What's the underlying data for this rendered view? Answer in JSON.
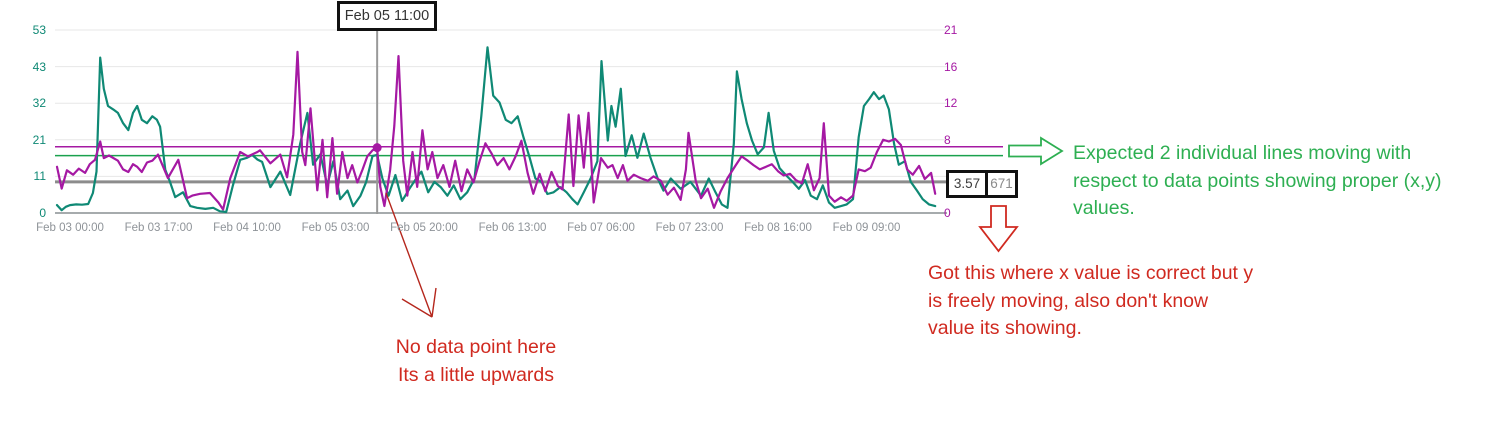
{
  "colors": {
    "teal_series": "#0f8975",
    "magenta_series": "#a519a3",
    "green_annotation": "#2eaf52",
    "red_annotation": "#d02a20",
    "red_thin_arrow": "#b5271d",
    "gray_ref_line": "#8c8c8c",
    "green_ref_line": "#1aa14e",
    "magenta_ref_line": "#a519a3",
    "gridline": "#e7e7e7",
    "baseline": "#a6abad",
    "crosshair": "#999999",
    "x_label_color": "#8e9398"
  },
  "annotations": {
    "tooltip_label": "Feb 05 11:00",
    "value_box_primary": "3.57",
    "value_box_secondary": "671",
    "green_note_lines": [
      "Expected 2 individual lines moving with",
      "respect to  data points showing proper (x,y)",
      "values."
    ],
    "red_note_right_lines": [
      "Got this where x value is correct but y",
      "is freely moving, also don't know",
      "value its showing."
    ],
    "red_note_bottom_lines": [
      "No data point here",
      "Its a little upwards"
    ]
  },
  "chart_data": {
    "type": "line",
    "grid": "horizontal-only",
    "x_axis": {
      "tick_interval_hours": 17,
      "tick_labels": [
        "Feb 03 00:00",
        "Feb 03 17:00",
        "Feb 04 10:00",
        "Feb 05 03:00",
        "Feb 05 20:00",
        "Feb 06 13:00",
        "Feb 07 06:00",
        "Feb 07 23:00",
        "Feb 08 16:00",
        "Feb 09 09:00"
      ]
    },
    "y_left": {
      "max": 53,
      "tick_labels": [
        "53",
        "43",
        "32",
        "21",
        "11",
        "0"
      ],
      "color": "#0f8975"
    },
    "y_right": {
      "max": 21,
      "tick_labels": [
        "21",
        "16",
        "12",
        "8",
        "",
        "0"
      ],
      "color": "#a519a3"
    },
    "ref_lines": [
      {
        "axis": "right",
        "value": 7.6,
        "color": "#a519a3",
        "width": 1.5
      },
      {
        "axis": "left",
        "value": 16.6,
        "color": "#1aa14e",
        "width": 1.5
      },
      {
        "axis": "right",
        "value": 3.57,
        "color": "#8c8c8c",
        "width": 3
      }
    ],
    "crosshair": {
      "label": "Feb 05 11:00",
      "hour": 59,
      "dot_axis": "right",
      "dot_value": 7.5
    },
    "series": [
      {
        "name": "teal-left-axis",
        "axis": "left",
        "color": "#0f8975",
        "points": [
          [
            -2.5,
            2.3
          ],
          [
            -1.6,
            0.8
          ],
          [
            -0.8,
            1.8
          ],
          [
            0,
            2.3
          ],
          [
            1.2,
            2.5
          ],
          [
            2.3,
            2.4
          ],
          [
            3.5,
            2.6
          ],
          [
            4.4,
            5.8
          ],
          [
            5.1,
            12
          ],
          [
            5.8,
            45
          ],
          [
            6.5,
            36
          ],
          [
            7.3,
            31
          ],
          [
            8.3,
            30
          ],
          [
            9.2,
            29
          ],
          [
            10.2,
            26
          ],
          [
            11.2,
            24
          ],
          [
            12.1,
            29
          ],
          [
            12.9,
            31
          ],
          [
            13.8,
            27
          ],
          [
            14.8,
            26
          ],
          [
            15.8,
            28
          ],
          [
            16.7,
            27
          ],
          [
            17.3,
            25
          ],
          [
            18.3,
            12.5
          ],
          [
            19.2,
            9
          ],
          [
            20.2,
            4.6
          ],
          [
            21.7,
            6
          ],
          [
            23.1,
            2
          ],
          [
            24.4,
            1.5
          ],
          [
            26,
            1.2
          ],
          [
            27.5,
            1.5
          ],
          [
            28.8,
            0.5
          ],
          [
            30,
            0.3
          ],
          [
            31.3,
            8
          ],
          [
            32.7,
            15.4
          ],
          [
            34,
            16
          ],
          [
            35,
            16.8
          ],
          [
            36,
            15.5
          ],
          [
            36.9,
            14.8
          ],
          [
            38.5,
            7.5
          ],
          [
            40.4,
            12
          ],
          [
            42.3,
            5.2
          ],
          [
            44.2,
            20
          ],
          [
            45.6,
            29
          ],
          [
            46.7,
            14
          ],
          [
            48.1,
            17
          ],
          [
            49.4,
            8
          ],
          [
            50.6,
            15
          ],
          [
            51.9,
            4
          ],
          [
            53.3,
            6.5
          ],
          [
            54.4,
            2
          ],
          [
            55.8,
            5
          ],
          [
            56.9,
            9
          ],
          [
            58.1,
            16.5
          ],
          [
            59,
            16.8
          ],
          [
            60,
            10
          ],
          [
            61.2,
            5
          ],
          [
            62.5,
            11
          ],
          [
            63.8,
            3.5
          ],
          [
            65.2,
            7
          ],
          [
            66.3,
            9.5
          ],
          [
            67.5,
            12
          ],
          [
            68.8,
            6
          ],
          [
            70,
            9
          ],
          [
            71.2,
            7.5
          ],
          [
            72.5,
            5
          ],
          [
            73.7,
            8
          ],
          [
            75,
            4
          ],
          [
            76.3,
            6
          ],
          [
            77.7,
            10
          ],
          [
            79,
            28
          ],
          [
            80.2,
            48
          ],
          [
            81.3,
            34
          ],
          [
            82.5,
            32
          ],
          [
            83.7,
            27
          ],
          [
            84.8,
            26
          ],
          [
            86,
            28
          ],
          [
            87.1,
            22
          ],
          [
            88.3,
            16
          ],
          [
            89.4,
            10
          ],
          [
            90.6,
            9
          ],
          [
            91.7,
            5.5
          ],
          [
            92.9,
            6
          ],
          [
            94.2,
            7.5
          ],
          [
            95.4,
            6
          ],
          [
            96.5,
            4
          ],
          [
            97.5,
            2.5
          ],
          [
            98.7,
            6
          ],
          [
            100,
            10
          ],
          [
            101.3,
            15
          ],
          [
            102.1,
            44
          ],
          [
            103.3,
            21
          ],
          [
            104,
            31
          ],
          [
            104.8,
            25
          ],
          [
            105.8,
            36
          ],
          [
            106.7,
            16.5
          ],
          [
            107.9,
            22.5
          ],
          [
            109,
            16
          ],
          [
            110.2,
            23
          ],
          [
            111.5,
            16
          ],
          [
            112.9,
            10
          ],
          [
            114,
            6.5
          ],
          [
            115.4,
            10
          ],
          [
            117.3,
            7
          ],
          [
            119.2,
            9
          ],
          [
            121.2,
            5
          ],
          [
            122.7,
            10
          ],
          [
            124,
            6
          ],
          [
            125.2,
            2.5
          ],
          [
            126.3,
            1.5
          ],
          [
            127.5,
            20
          ],
          [
            128.1,
            41
          ],
          [
            129,
            33
          ],
          [
            130,
            26
          ],
          [
            131,
            21
          ],
          [
            132.1,
            17
          ],
          [
            133.3,
            19
          ],
          [
            134.2,
            29
          ],
          [
            135.2,
            18
          ],
          [
            136.3,
            13
          ],
          [
            137.5,
            11
          ],
          [
            138.8,
            9
          ],
          [
            140,
            7
          ],
          [
            141.2,
            9.5
          ],
          [
            142.3,
            5
          ],
          [
            143.5,
            4
          ],
          [
            144.6,
            8
          ],
          [
            145.8,
            3
          ],
          [
            146.9,
            1.5
          ],
          [
            148.1,
            2
          ],
          [
            149.2,
            2.5
          ],
          [
            150.4,
            4
          ],
          [
            151.5,
            22
          ],
          [
            152.5,
            31
          ],
          [
            153.5,
            33
          ],
          [
            154.4,
            35
          ],
          [
            155.4,
            33
          ],
          [
            156.3,
            34
          ],
          [
            157.3,
            30
          ],
          [
            158.3,
            20
          ],
          [
            159.2,
            14
          ],
          [
            160.4,
            15
          ],
          [
            161.5,
            9
          ],
          [
            162.7,
            6.5
          ],
          [
            163.8,
            4
          ],
          [
            165,
            2.5
          ],
          [
            166.2,
            2
          ]
        ]
      },
      {
        "name": "magenta-right-axis",
        "axis": "right",
        "color": "#a519a3",
        "points": [
          [
            -2.5,
            5.3
          ],
          [
            -1.6,
            2.8
          ],
          [
            -0.6,
            4.9
          ],
          [
            0.6,
            4.4
          ],
          [
            1.7,
            5.1
          ],
          [
            2.9,
            4.6
          ],
          [
            3.8,
            5.6
          ],
          [
            4.8,
            6.1
          ],
          [
            5.8,
            8.2
          ],
          [
            6.5,
            6.3
          ],
          [
            7.5,
            6.6
          ],
          [
            9.2,
            6
          ],
          [
            10.2,
            5
          ],
          [
            11.2,
            4.7
          ],
          [
            12.1,
            5.6
          ],
          [
            12.9,
            5.3
          ],
          [
            13.8,
            4.7
          ],
          [
            14.8,
            5.8
          ],
          [
            15.8,
            6
          ],
          [
            16.9,
            6.7
          ],
          [
            18.8,
            4
          ],
          [
            20.8,
            6.1
          ],
          [
            22.5,
            1.7
          ],
          [
            23.5,
            2
          ],
          [
            25,
            2.2
          ],
          [
            26.9,
            2.3
          ],
          [
            28.5,
            1.2
          ],
          [
            29.4,
            0.4
          ],
          [
            30.8,
            4
          ],
          [
            32.7,
            7
          ],
          [
            34.2,
            6.5
          ],
          [
            36,
            7
          ],
          [
            36.5,
            7.2
          ],
          [
            38.5,
            5.7
          ],
          [
            40.4,
            6.7
          ],
          [
            41.7,
            4.1
          ],
          [
            42.9,
            9
          ],
          [
            43.7,
            18.5
          ],
          [
            44.6,
            7
          ],
          [
            45.2,
            5.5
          ],
          [
            46.2,
            12
          ],
          [
            47.5,
            2.6
          ],
          [
            48.5,
            8.4
          ],
          [
            49.4,
            1.8
          ],
          [
            50.4,
            8.6
          ],
          [
            51.3,
            2.2
          ],
          [
            52.3,
            7
          ],
          [
            53.3,
            4
          ],
          [
            54.2,
            5.5
          ],
          [
            55.2,
            3.5
          ],
          [
            56.2,
            5
          ],
          [
            57.1,
            6.5
          ],
          [
            58.1,
            7.2
          ],
          [
            59,
            7.5
          ],
          [
            59.6,
            3
          ],
          [
            60.4,
            0.8
          ],
          [
            61.5,
            5
          ],
          [
            62.3,
            10
          ],
          [
            63.1,
            18
          ],
          [
            64,
            6
          ],
          [
            64.8,
            2
          ],
          [
            65.8,
            7
          ],
          [
            66.7,
            3
          ],
          [
            67.7,
            9.5
          ],
          [
            68.7,
            5
          ],
          [
            69.6,
            7
          ],
          [
            70.6,
            4
          ],
          [
            71.7,
            5.5
          ],
          [
            72.9,
            3
          ],
          [
            74,
            6
          ],
          [
            75.2,
            2.5
          ],
          [
            76.3,
            5
          ],
          [
            77.5,
            3.5
          ],
          [
            78.7,
            6
          ],
          [
            79.8,
            8
          ],
          [
            81,
            6.8
          ],
          [
            82.1,
            5.5
          ],
          [
            83.3,
            6.3
          ],
          [
            84.4,
            5
          ],
          [
            85.6,
            6.5
          ],
          [
            86.7,
            8.3
          ],
          [
            87.9,
            4.6
          ],
          [
            89,
            2.2
          ],
          [
            90.2,
            4.5
          ],
          [
            91.3,
            2.5
          ],
          [
            92.5,
            4.7
          ],
          [
            93.7,
            3.1
          ],
          [
            94.6,
            2.7
          ],
          [
            95.8,
            11.3
          ],
          [
            96.7,
            3.1
          ],
          [
            97.7,
            11.2
          ],
          [
            98.7,
            5.2
          ],
          [
            99.6,
            11.5
          ],
          [
            100.6,
            1.2
          ],
          [
            102,
            6.3
          ],
          [
            103.3,
            5.2
          ],
          [
            104.2,
            5.5
          ],
          [
            105.2,
            4
          ],
          [
            106.2,
            5.5
          ],
          [
            107.1,
            3.7
          ],
          [
            108.3,
            4.4
          ],
          [
            109.6,
            4
          ],
          [
            111,
            3.7
          ],
          [
            112.1,
            4.2
          ],
          [
            113.5,
            3.7
          ],
          [
            114.8,
            2.1
          ],
          [
            116,
            2.9
          ],
          [
            117.3,
            1.5
          ],
          [
            118.3,
            5
          ],
          [
            118.8,
            9.2
          ],
          [
            120.2,
            3.7
          ],
          [
            121.2,
            1.7
          ],
          [
            122.5,
            2.8
          ],
          [
            123.7,
            0.6
          ],
          [
            125,
            2.5
          ],
          [
            126.3,
            4
          ],
          [
            127.9,
            5.5
          ],
          [
            129,
            6.5
          ],
          [
            130.2,
            6
          ],
          [
            131.3,
            5.5
          ],
          [
            132.5,
            5
          ],
          [
            133.7,
            5.3
          ],
          [
            134.8,
            5.6
          ],
          [
            136,
            4.8
          ],
          [
            137.1,
            4.3
          ],
          [
            138.3,
            4.5
          ],
          [
            139.4,
            3.8
          ],
          [
            140.6,
            3.4
          ],
          [
            141.7,
            5.6
          ],
          [
            142.9,
            2.6
          ],
          [
            144,
            4
          ],
          [
            144.8,
            10.3
          ],
          [
            145.8,
            2
          ],
          [
            146.9,
            1.3
          ],
          [
            148.1,
            1.8
          ],
          [
            149.2,
            1.4
          ],
          [
            150.4,
            2
          ],
          [
            151.5,
            5
          ],
          [
            152.7,
            4.8
          ],
          [
            153.8,
            5.2
          ],
          [
            155,
            7
          ],
          [
            156.2,
            8.4
          ],
          [
            157.3,
            8.2
          ],
          [
            158.5,
            8.5
          ],
          [
            159.6,
            7.8
          ],
          [
            160.8,
            5
          ],
          [
            161.9,
            4.4
          ],
          [
            163.1,
            5.4
          ],
          [
            164.2,
            3.9
          ],
          [
            165.4,
            4.6
          ],
          [
            166.2,
            2.2
          ]
        ]
      }
    ]
  }
}
